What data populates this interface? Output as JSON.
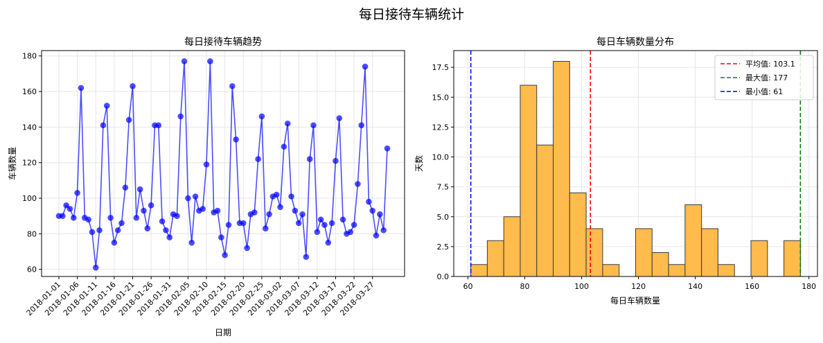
{
  "figure_title": "每日接待车辆统计",
  "chart_data": [
    {
      "type": "line",
      "title": "每日接待车辆趋势",
      "xlabel": "日期",
      "ylabel": "车辆数量",
      "ylim": [
        56,
        183
      ],
      "yticks": [
        60,
        80,
        100,
        120,
        140,
        160,
        180
      ],
      "xtick_labels": [
        "2018-01-01",
        "2018-01-06",
        "2018-01-11",
        "2018-01-16",
        "2018-01-21",
        "2018-01-26",
        "2018-01-31",
        "2018-02-05",
        "2018-02-10",
        "2018-02-15",
        "2018-02-20",
        "2018-02-25",
        "2018-03-02",
        "2018-03-07",
        "2018-03-12",
        "2018-03-17",
        "2018-03-22",
        "2018-03-27"
      ],
      "grid": true,
      "color": "#0000ff",
      "series": [
        {
          "x_start": "2018-01-01",
          "values": [
            90,
            90,
            96,
            94,
            89,
            103,
            162,
            89,
            88,
            81,
            61,
            82,
            141,
            152,
            89,
            75,
            82,
            86,
            106,
            144,
            163,
            89,
            105,
            93,
            83,
            96,
            141,
            141,
            87,
            82,
            78,
            91,
            90,
            146,
            177,
            100,
            75,
            101,
            93,
            94,
            119,
            177,
            92,
            93,
            78,
            68,
            85,
            163,
            133,
            86,
            86,
            72,
            91,
            92,
            122,
            146,
            83,
            91,
            101,
            102,
            95,
            129,
            142,
            101,
            93,
            86,
            91,
            67,
            122,
            141,
            81,
            88,
            85,
            75,
            86,
            121,
            145,
            88,
            80,
            81,
            85,
            108,
            141,
            174,
            98,
            93,
            79,
            91,
            82,
            128
          ]
        }
      ]
    },
    {
      "type": "bar",
      "subtype": "histogram",
      "title": "每日车辆数量分布",
      "xlabel": "每日车辆数量",
      "ylabel": "天数",
      "xlim": [
        55,
        183
      ],
      "ylim": [
        0,
        18.9
      ],
      "xticks": [
        60,
        80,
        100,
        120,
        140,
        160,
        180
      ],
      "yticks": [
        0.0,
        2.5,
        5.0,
        7.5,
        10.0,
        12.5,
        15.0,
        17.5
      ],
      "ytick_labels": [
        "0.0",
        "2.5",
        "5.0",
        "7.5",
        "10.0",
        "12.5",
        "15.0",
        "17.5"
      ],
      "bin_start": 61,
      "bin_width": 5.8,
      "counts": [
        1,
        3,
        5,
        16,
        11,
        18,
        7,
        4,
        1,
        0,
        4,
        2,
        1,
        6,
        4,
        1,
        0,
        3,
        0,
        3
      ],
      "bar_color": "#ffbb4c",
      "grid": true,
      "legend_position": "top-right",
      "reference_lines": [
        {
          "label": "平均值: 103.1",
          "value": 103.1,
          "color": "#ff0000"
        },
        {
          "label": "最大值: 177",
          "value": 177,
          "color": "#008000"
        },
        {
          "label": "最小值: 61",
          "value": 61,
          "color": "#0000ff"
        }
      ]
    }
  ]
}
